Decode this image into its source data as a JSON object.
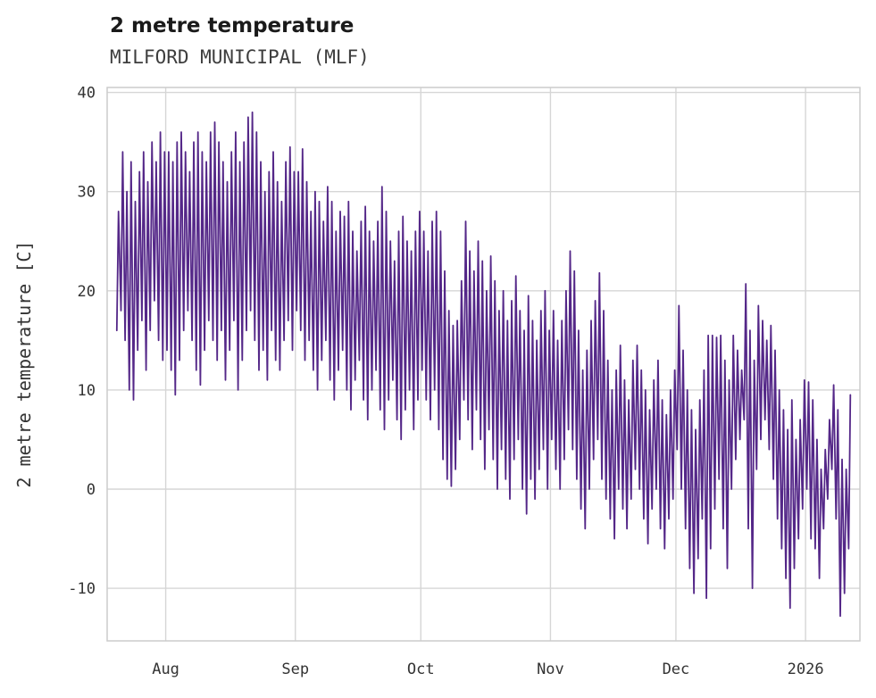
{
  "header": {
    "title": "2 metre temperature",
    "subtitle": "MILFORD MUNICIPAL (MLF)"
  },
  "chart_data": {
    "type": "line",
    "title": "2 metre temperature",
    "subtitle": "MILFORD MUNICIPAL (MLF)",
    "xlabel": "",
    "ylabel": "2 metre temperature [C]",
    "ylim": [
      -15.3,
      40.5
    ],
    "y_ticks": [
      -10,
      0,
      10,
      20,
      30,
      40
    ],
    "xlim_days": [
      0,
      180
    ],
    "x_ticks": [
      {
        "label": "Aug",
        "day": 14
      },
      {
        "label": "Sep",
        "day": 45
      },
      {
        "label": "Oct",
        "day": 75
      },
      {
        "label": "Nov",
        "day": 106
      },
      {
        "label": "Dec",
        "day": 136
      },
      {
        "label": "2026",
        "day": 167
      }
    ],
    "grid": true,
    "legend": "none",
    "line_color": "#542788",
    "grid_color": "#d6d6d6",
    "border_color": "#cccccc",
    "series": [
      {
        "name": "2 metre temperature",
        "start_day": 2,
        "daily_max": [
          28,
          34,
          30,
          33,
          29,
          32,
          34,
          31,
          35,
          33,
          36,
          34,
          34,
          33,
          35,
          36,
          34,
          32,
          35,
          36,
          34,
          33,
          36,
          37,
          35,
          33,
          31,
          34,
          36,
          33,
          35,
          37.5,
          38,
          36,
          33,
          30,
          32,
          34,
          31,
          29,
          33,
          34.5,
          32,
          32,
          34.3,
          31,
          28,
          30,
          29,
          27,
          30.5,
          29,
          26,
          28,
          27.5,
          29,
          26,
          24,
          27,
          28.5,
          26,
          25,
          27,
          30.5,
          28,
          25,
          23,
          26,
          27.5,
          25,
          24,
          26,
          28,
          26,
          24,
          27,
          28,
          26,
          22,
          18,
          16.5,
          17,
          21,
          27,
          24,
          22,
          25,
          23,
          20,
          23.5,
          21,
          18,
          20,
          17,
          19,
          21.5,
          18,
          16,
          19.5,
          17,
          15,
          18,
          20,
          16,
          18,
          15,
          17,
          20,
          24,
          22,
          16,
          12,
          14,
          17,
          19,
          21.8,
          18,
          13,
          10,
          12,
          14.5,
          11,
          9,
          13,
          14.5,
          12,
          10,
          8,
          11,
          13,
          9,
          7.5,
          10,
          12,
          18.5,
          14,
          10,
          8,
          6,
          9,
          12,
          15.5,
          15.5,
          15.3,
          15.5,
          13,
          11,
          15.5,
          14,
          12,
          20.7,
          16,
          13,
          18.5,
          17,
          15,
          16.5,
          14,
          10,
          8,
          6,
          9,
          5,
          7,
          11,
          10.8,
          9,
          5,
          2,
          4,
          7,
          10.5,
          8,
          3,
          2,
          9.5
        ],
        "daily_min": [
          16,
          18,
          15,
          10,
          9,
          14,
          17,
          12,
          16,
          19,
          15,
          13,
          14,
          12,
          9.5,
          13,
          16,
          18,
          15,
          12,
          10.5,
          14,
          17,
          15,
          13,
          16,
          11,
          14,
          17,
          10,
          13,
          16,
          18,
          15,
          12,
          14,
          11,
          16,
          13,
          12,
          15,
          17,
          14,
          18,
          16,
          13,
          15,
          12,
          10,
          13,
          15,
          11,
          9,
          12,
          14,
          10,
          8,
          11,
          13,
          9,
          7,
          10,
          12,
          8,
          6,
          9,
          11,
          7,
          5,
          8,
          10,
          6,
          9,
          12,
          9,
          7,
          10,
          6,
          3,
          1,
          0.3,
          2,
          5,
          9,
          7,
          4,
          8,
          5,
          2,
          6,
          3,
          0,
          4,
          1,
          -1,
          3,
          5,
          0,
          -2.5,
          1,
          -1,
          2,
          4,
          0,
          5,
          2,
          0,
          3,
          6,
          4,
          1,
          -2,
          -4,
          0,
          3,
          5,
          1,
          -1,
          -3,
          -5,
          0,
          -2,
          -4,
          -1,
          2,
          0,
          -3,
          -5.5,
          -2,
          0,
          -4,
          -6,
          -3,
          -1,
          4,
          0,
          -4,
          -8,
          -10.5,
          -7,
          -3,
          -11,
          -6,
          -2,
          1,
          -4,
          -8,
          0,
          3,
          5,
          7,
          -4,
          -10,
          2,
          5,
          7,
          4,
          1,
          -3,
          -6,
          -9,
          -12,
          -8,
          -5,
          -2,
          0,
          -5,
          -6,
          -9,
          -4,
          -1,
          2,
          -3,
          -12.8,
          -10.5,
          -6
        ]
      }
    ]
  }
}
